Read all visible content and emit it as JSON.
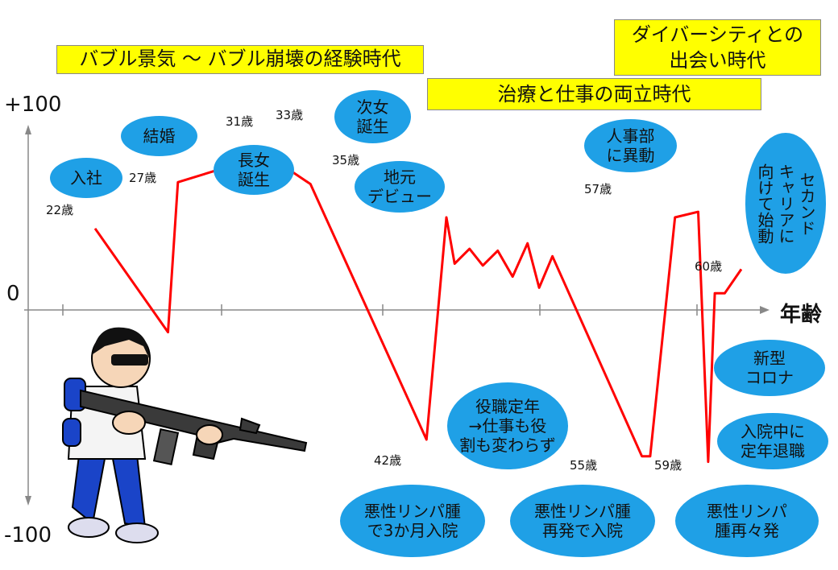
{
  "chart_data": {
    "type": "line",
    "xlabel": "年齢",
    "y_ticks": [
      "+100",
      "0",
      "-100"
    ],
    "ylim": [
      -100,
      100
    ],
    "series": [
      {
        "values": [
          [
            22,
            44
          ],
          [
            26.4,
            -12
          ],
          [
            27,
            69
          ],
          [
            31,
            80
          ],
          [
            33,
            80
          ],
          [
            35,
            68
          ],
          [
            42,
            -70
          ],
          [
            43.2,
            50
          ],
          [
            43.7,
            25
          ],
          [
            44.6,
            33
          ],
          [
            45.4,
            24
          ],
          [
            46.3,
            32
          ],
          [
            47.2,
            18
          ],
          [
            48.1,
            36
          ],
          [
            48.8,
            12
          ],
          [
            49.6,
            29
          ],
          [
            55,
            -79
          ],
          [
            55.5,
            -79
          ],
          [
            57,
            50
          ],
          [
            58.4,
            53
          ],
          [
            59,
            -82
          ],
          [
            59.4,
            9
          ],
          [
            60,
            9
          ],
          [
            61,
            22
          ]
        ]
      }
    ],
    "annotations": [
      "22歳",
      "27歳",
      "31歳",
      "33歳",
      "35歳",
      "42歳",
      "55歳",
      "57歳",
      "59歳",
      "60歳"
    ]
  },
  "eras": [
    "バブル景気 ～ バブル崩壊の経験時代",
    "治療と仕事の両立時代",
    "ダイバーシティとの\n出会い時代"
  ],
  "events": [
    "入社",
    "結婚",
    "長女\n誕生",
    "次女\n誕生",
    "地元\nデビュー",
    "役職定年\n→仕事も役\n割も変わらず",
    "人事部\nに異動",
    "セカンド\nキャリアに\n向けて始動",
    "新型\nコロナ",
    "入院中に\n定年退職",
    "悪性リンパ腫\nで3か月入院",
    "悪性リンパ腫\n再発で入院",
    "悪性リンパ\n腫再々発"
  ],
  "colors": {
    "line": "#ff0000",
    "bubble": "#1fa0e6",
    "era_box": "#ffff00",
    "axis": "#888888"
  },
  "illustration": "soldier-with-rifle"
}
